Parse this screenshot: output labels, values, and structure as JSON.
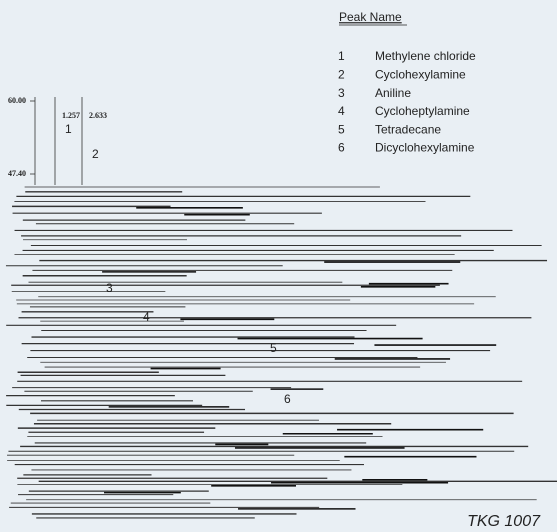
{
  "legend": {
    "title": "Peak Name",
    "peaks": [
      {
        "number": "1",
        "name": "Methylene chloride"
      },
      {
        "number": "2",
        "name": "Cyclohexylamine"
      },
      {
        "number": "3",
        "name": "Aniline"
      },
      {
        "number": "4",
        "name": "Cycloheptylamine"
      },
      {
        "number": "5",
        "name": "Tetradecane"
      },
      {
        "number": "6",
        "name": "Dicyclohexylamine"
      }
    ]
  },
  "inset": {
    "y_top": "60.00",
    "y_bottom": "47.40",
    "peak_times": [
      "1.257",
      "2.633"
    ]
  },
  "footer": "TKG 1007"
}
